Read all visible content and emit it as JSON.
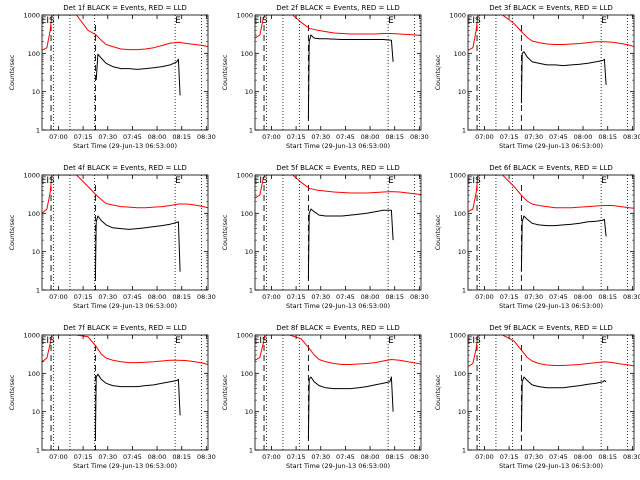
{
  "figure": {
    "xlabel": "Start Time (29-Jun-13 06:53:00)",
    "ylabel": "Counts/sec",
    "xticks": [
      "07:00",
      "07:15",
      "07:30",
      "07:45",
      "08:00",
      "08:15",
      "08:30"
    ],
    "yticks": [
      "1",
      "10",
      "100",
      "1000"
    ],
    "colors": {
      "events": "#000000",
      "lld": "#ff0000",
      "axes": "#000000",
      "background": "#ffffff"
    }
  },
  "chart_data": [
    {
      "type": "line",
      "title": "Det 1f BLACK = Events, RED = LLD",
      "xlim_min": [
        -3,
        98
      ],
      "ylim": [
        1,
        1000
      ],
      "yscale": "log",
      "marker_labels": [
        {
          "text": "EIS",
          "x": 0.5
        },
        {
          "text": "E",
          "x": 78
        }
      ],
      "dotted_lines_min": [
        4,
        14,
        29,
        78,
        94
      ],
      "dashed_lines_min": [
        2.5,
        29.5
      ],
      "series": [
        {
          "name": "Events",
          "color": "#000000",
          "x": [
            30,
            31,
            33,
            36,
            40,
            45,
            50,
            55,
            60,
            65,
            70,
            75,
            79,
            80,
            81
          ],
          "y": [
            20,
            95,
            75,
            55,
            45,
            40,
            40,
            38,
            40,
            42,
            45,
            50,
            60,
            70,
            8
          ]
        },
        {
          "name": "LLD",
          "color": "#ff0000",
          "x": [
            -3,
            0,
            2,
            3,
            4,
            8,
            12,
            18,
            25,
            30,
            33,
            36,
            40,
            45,
            50,
            55,
            60,
            65,
            70,
            75,
            80,
            85,
            90,
            95,
            98
          ],
          "y": [
            120,
            140,
            400,
            1000,
            1000,
            1000,
            1000,
            1000,
            400,
            300,
            220,
            170,
            150,
            130,
            125,
            125,
            130,
            140,
            160,
            185,
            195,
            180,
            170,
            160,
            150
          ]
        }
      ]
    },
    {
      "type": "line",
      "title": "Det 2f BLACK = Events, RED = LLD",
      "xlim_min": [
        -3,
        98
      ],
      "ylim": [
        1,
        1000
      ],
      "yscale": "log",
      "marker_labels": [
        {
          "text": "EIS",
          "x": 0.5
        },
        {
          "text": "E",
          "x": 78
        }
      ],
      "dotted_lines_min": [
        4,
        14,
        24,
        78,
        94
      ],
      "dashed_lines_min": [
        2.5,
        29.5
      ],
      "series": [
        {
          "name": "Events",
          "color": "#000000",
          "x": [
            29.5,
            30,
            31,
            33,
            36,
            40,
            45,
            50,
            55,
            60,
            65,
            70,
            75,
            80,
            81
          ],
          "y": [
            2,
            200,
            300,
            250,
            240,
            240,
            235,
            230,
            230,
            230,
            230,
            230,
            230,
            220,
            60
          ]
        },
        {
          "name": "LLD",
          "color": "#ff0000",
          "x": [
            -3,
            0,
            2,
            3,
            4,
            8,
            12,
            16,
            20,
            25,
            30,
            35,
            40,
            45,
            50,
            55,
            60,
            65,
            70,
            75,
            80,
            85,
            90,
            95,
            98
          ],
          "y": [
            250,
            300,
            800,
            1000,
            1000,
            1000,
            1000,
            1000,
            1000,
            650,
            450,
            400,
            370,
            340,
            330,
            320,
            320,
            320,
            320,
            330,
            330,
            320,
            310,
            300,
            290
          ]
        }
      ]
    },
    {
      "type": "line",
      "title": "Det 3f BLACK = Events, RED = LLD",
      "xlim_min": [
        -3,
        98
      ],
      "ylim": [
        1,
        1000
      ],
      "yscale": "log",
      "marker_labels": [
        {
          "text": "EIS",
          "x": 0.5
        },
        {
          "text": "E",
          "x": 78
        }
      ],
      "dotted_lines_min": [
        4,
        14,
        24,
        78,
        94
      ],
      "dashed_lines_min": [
        2.5,
        29.5
      ],
      "series": [
        {
          "name": "Events",
          "color": "#000000",
          "x": [
            29.5,
            30,
            31,
            33,
            36,
            40,
            45,
            50,
            55,
            60,
            65,
            70,
            75,
            79,
            80,
            81
          ],
          "y": [
            5,
            100,
            110,
            80,
            60,
            55,
            50,
            50,
            48,
            50,
            52,
            55,
            60,
            65,
            70,
            15
          ]
        },
        {
          "name": "LLD",
          "color": "#ff0000",
          "x": [
            -3,
            0,
            2,
            3,
            4,
            8,
            12,
            18,
            25,
            30,
            33,
            36,
            40,
            45,
            50,
            55,
            60,
            65,
            70,
            75,
            80,
            85,
            90,
            95,
            98
          ],
          "y": [
            120,
            140,
            400,
            1000,
            1000,
            1000,
            1000,
            1000,
            600,
            350,
            260,
            210,
            190,
            175,
            170,
            170,
            175,
            180,
            190,
            200,
            200,
            195,
            180,
            165,
            150
          ]
        }
      ]
    },
    {
      "type": "line",
      "title": "Det 4f BLACK = Events, RED = LLD",
      "xlim_min": [
        -3,
        98
      ],
      "ylim": [
        1,
        1000
      ],
      "yscale": "log",
      "marker_labels": [
        {
          "text": "EIS",
          "x": 0.5
        },
        {
          "text": "E",
          "x": 78
        }
      ],
      "dotted_lines_min": [
        4,
        14,
        29,
        78,
        94
      ],
      "dashed_lines_min": [
        2.5,
        29.5
      ],
      "series": [
        {
          "name": "Events",
          "color": "#000000",
          "x": [
            29.5,
            30,
            31,
            33,
            36,
            40,
            45,
            50,
            55,
            60,
            65,
            70,
            75,
            79,
            80,
            81
          ],
          "y": [
            2,
            60,
            85,
            65,
            50,
            42,
            40,
            38,
            40,
            42,
            45,
            48,
            52,
            58,
            60,
            3
          ]
        },
        {
          "name": "LLD",
          "color": "#ff0000",
          "x": [
            -3,
            0,
            2,
            3,
            4,
            8,
            12,
            18,
            25,
            30,
            33,
            36,
            40,
            45,
            50,
            55,
            60,
            65,
            70,
            75,
            80,
            85,
            90,
            95,
            98
          ],
          "y": [
            100,
            130,
            350,
            1000,
            1000,
            1000,
            1000,
            1000,
            500,
            300,
            230,
            180,
            165,
            150,
            145,
            140,
            140,
            145,
            150,
            160,
            175,
            175,
            165,
            150,
            140
          ]
        }
      ]
    },
    {
      "type": "line",
      "title": "Det 5f BLACK = Events, RED = LLD",
      "xlim_min": [
        -3,
        98
      ],
      "ylim": [
        1,
        1000
      ],
      "yscale": "log",
      "marker_labels": [
        {
          "text": "EIS",
          "x": 0.5
        },
        {
          "text": "E",
          "x": 78
        }
      ],
      "dotted_lines_min": [
        4,
        14,
        24,
        78,
        94
      ],
      "dashed_lines_min": [
        2.5,
        29.5
      ],
      "series": [
        {
          "name": "Events",
          "color": "#000000",
          "x": [
            29.5,
            30,
            31,
            33,
            36,
            40,
            45,
            50,
            55,
            60,
            65,
            70,
            75,
            80,
            81
          ],
          "y": [
            2,
            100,
            130,
            110,
            90,
            85,
            85,
            85,
            90,
            95,
            100,
            110,
            120,
            120,
            20
          ]
        },
        {
          "name": "LLD",
          "color": "#ff0000",
          "x": [
            -3,
            0,
            2,
            3,
            4,
            8,
            12,
            16,
            20,
            25,
            30,
            35,
            40,
            45,
            50,
            55,
            60,
            65,
            70,
            75,
            80,
            85,
            90,
            95,
            98
          ],
          "y": [
            250,
            300,
            800,
            1000,
            1000,
            1000,
            1000,
            1000,
            1000,
            650,
            450,
            400,
            380,
            360,
            350,
            340,
            340,
            340,
            350,
            360,
            370,
            360,
            340,
            320,
            310
          ]
        }
      ]
    },
    {
      "type": "line",
      "title": "Det 6f BLACK = Events, RED = LLD",
      "xlim_min": [
        -3,
        98
      ],
      "ylim": [
        1,
        1000
      ],
      "yscale": "log",
      "marker_labels": [
        {
          "text": "EIS",
          "x": 0.5
        },
        {
          "text": "E",
          "x": 78
        }
      ],
      "dotted_lines_min": [
        4,
        14,
        24,
        78,
        94
      ],
      "dashed_lines_min": [
        2.5,
        29.5
      ],
      "series": [
        {
          "name": "Events",
          "color": "#000000",
          "x": [
            29.5,
            30,
            31,
            33,
            36,
            40,
            45,
            50,
            55,
            60,
            65,
            70,
            75,
            79,
            80,
            81
          ],
          "y": [
            3,
            60,
            85,
            70,
            55,
            50,
            48,
            48,
            50,
            52,
            55,
            60,
            62,
            66,
            70,
            25
          ]
        },
        {
          "name": "LLD",
          "color": "#ff0000",
          "x": [
            -3,
            0,
            2,
            3,
            4,
            8,
            12,
            18,
            25,
            30,
            33,
            36,
            40,
            45,
            50,
            55,
            60,
            65,
            70,
            75,
            80,
            85,
            90,
            95,
            98
          ],
          "y": [
            110,
            130,
            350,
            1000,
            1000,
            1000,
            1000,
            1000,
            500,
            280,
            210,
            175,
            160,
            150,
            140,
            140,
            140,
            145,
            150,
            155,
            160,
            160,
            150,
            140,
            135
          ]
        }
      ]
    },
    {
      "type": "line",
      "title": "Det 7f BLACK = Events, RED = LLD",
      "xlim_min": [
        -3,
        98
      ],
      "ylim": [
        1,
        1000
      ],
      "yscale": "log",
      "marker_labels": [
        {
          "text": "EIS",
          "x": 0.5
        },
        {
          "text": "E",
          "x": 78
        }
      ],
      "dotted_lines_min": [
        4,
        14,
        29,
        78,
        94
      ],
      "dashed_lines_min": [
        2.5,
        29.5
      ],
      "series": [
        {
          "name": "Events",
          "color": "#000000",
          "x": [
            29.5,
            30,
            31,
            33,
            36,
            40,
            45,
            50,
            55,
            60,
            65,
            70,
            75,
            79,
            80,
            81
          ],
          "y": [
            2,
            80,
            95,
            70,
            55,
            48,
            45,
            45,
            45,
            48,
            50,
            55,
            60,
            65,
            70,
            8
          ]
        },
        {
          "name": "LLD",
          "color": "#ff0000",
          "x": [
            -3,
            0,
            2,
            3,
            4,
            8,
            12,
            18,
            25,
            30,
            33,
            36,
            40,
            45,
            50,
            55,
            60,
            65,
            70,
            75,
            80,
            85,
            90,
            95,
            98
          ],
          "y": [
            200,
            250,
            600,
            1000,
            1000,
            1000,
            1000,
            1000,
            900,
            500,
            320,
            250,
            220,
            200,
            190,
            190,
            195,
            200,
            210,
            220,
            220,
            215,
            200,
            185,
            170
          ]
        }
      ]
    },
    {
      "type": "line",
      "title": "Det 8f BLACK = Events, RED = LLD",
      "xlim_min": [
        -3,
        98
      ],
      "ylim": [
        1,
        1000
      ],
      "yscale": "log",
      "marker_labels": [
        {
          "text": "EIS",
          "x": 0.5
        },
        {
          "text": "E",
          "x": 78
        }
      ],
      "dotted_lines_min": [
        4,
        14,
        24,
        78,
        94
      ],
      "dashed_lines_min": [
        2.5,
        29.5
      ],
      "series": [
        {
          "name": "Events",
          "color": "#000000",
          "x": [
            29.5,
            30,
            31,
            33,
            36,
            40,
            45,
            50,
            55,
            60,
            65,
            70,
            75,
            79,
            80,
            81
          ],
          "y": [
            2,
            70,
            80,
            60,
            48,
            42,
            40,
            40,
            40,
            42,
            45,
            50,
            55,
            60,
            80,
            10
          ]
        },
        {
          "name": "LLD",
          "color": "#ff0000",
          "x": [
            -3,
            0,
            2,
            3,
            4,
            8,
            12,
            18,
            25,
            30,
            33,
            36,
            40,
            45,
            50,
            55,
            60,
            65,
            70,
            75,
            80,
            85,
            90,
            95,
            98
          ],
          "y": [
            220,
            260,
            600,
            1000,
            1000,
            1000,
            1000,
            1000,
            800,
            450,
            300,
            230,
            200,
            180,
            170,
            170,
            175,
            180,
            190,
            210,
            230,
            220,
            200,
            185,
            175
          ]
        }
      ]
    },
    {
      "type": "line",
      "title": "Det 9f BLACK = Events, RED = LLD",
      "xlim_min": [
        -3,
        98
      ],
      "ylim": [
        1,
        1000
      ],
      "yscale": "log",
      "marker_labels": [
        {
          "text": "EIS",
          "x": 0.5
        },
        {
          "text": "E",
          "x": 78
        }
      ],
      "dotted_lines_min": [
        4,
        14,
        24,
        78,
        94
      ],
      "dashed_lines_min": [
        2.5,
        29.5
      ],
      "series": [
        {
          "name": "Events",
          "color": "#000000",
          "x": [
            29.5,
            30,
            31,
            33,
            36,
            40,
            45,
            50,
            55,
            60,
            65,
            70,
            75,
            79,
            80,
            81
          ],
          "y": [
            3,
            60,
            80,
            65,
            50,
            45,
            42,
            42,
            42,
            45,
            48,
            52,
            55,
            60,
            65,
            60
          ]
        },
        {
          "name": "LLD",
          "color": "#ff0000",
          "x": [
            -3,
            0,
            2,
            3,
            4,
            8,
            12,
            18,
            25,
            30,
            33,
            36,
            40,
            45,
            50,
            55,
            60,
            65,
            70,
            75,
            80,
            85,
            90,
            95,
            98
          ],
          "y": [
            150,
            180,
            450,
            1000,
            1000,
            1000,
            1000,
            1000,
            700,
            380,
            260,
            210,
            180,
            165,
            160,
            160,
            165,
            170,
            180,
            190,
            200,
            190,
            175,
            165,
            155
          ]
        }
      ]
    }
  ]
}
